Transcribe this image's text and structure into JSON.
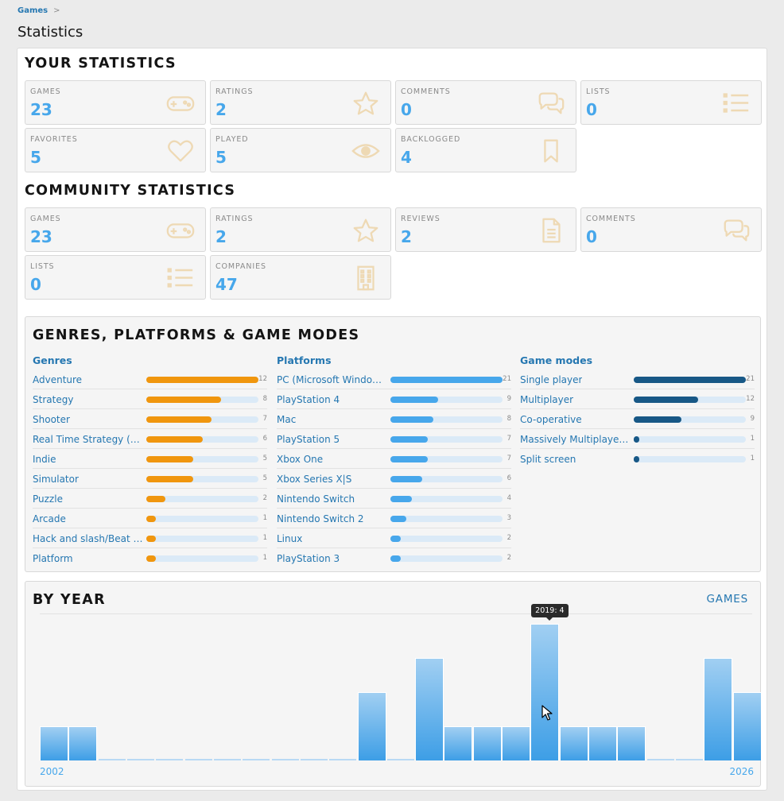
{
  "breadcrumb": {
    "item": "Games",
    "separator": ">"
  },
  "page_title": "Statistics",
  "your_stats": {
    "title": "YOUR STATISTICS",
    "tiles": [
      {
        "label": "GAMES",
        "value": "23",
        "icon": "gamepad-icon"
      },
      {
        "label": "RATINGS",
        "value": "2",
        "icon": "star-icon"
      },
      {
        "label": "COMMENTS",
        "value": "0",
        "icon": "comments-icon"
      },
      {
        "label": "LISTS",
        "value": "0",
        "icon": "list-icon"
      },
      {
        "label": "FAVORITES",
        "value": "5",
        "icon": "heart-icon"
      },
      {
        "label": "PLAYED",
        "value": "5",
        "icon": "eye-icon"
      },
      {
        "label": "BACKLOGGED",
        "value": "4",
        "icon": "bookmark-icon"
      }
    ]
  },
  "community_stats": {
    "title": "COMMUNITY STATISTICS",
    "tiles": [
      {
        "label": "GAMES",
        "value": "23",
        "icon": "gamepad-icon"
      },
      {
        "label": "RATINGS",
        "value": "2",
        "icon": "star-icon"
      },
      {
        "label": "REVIEWS",
        "value": "2",
        "icon": "document-icon"
      },
      {
        "label": "COMMENTS",
        "value": "0",
        "icon": "comments-icon"
      },
      {
        "label": "LISTS",
        "value": "0",
        "icon": "list-icon"
      },
      {
        "label": "COMPANIES",
        "value": "47",
        "icon": "building-icon"
      }
    ]
  },
  "breakdown": {
    "title": "GENRES, PLATFORMS & GAME MODES",
    "colors": {
      "genres": "#f0960e",
      "platforms": "#47a7eb",
      "modes": "#185886"
    },
    "genres": {
      "heading": "Genres",
      "max": 12,
      "items": [
        {
          "name": "Adventure",
          "count": 12
        },
        {
          "name": "Strategy",
          "count": 8
        },
        {
          "name": "Shooter",
          "count": 7
        },
        {
          "name": "Real Time Strategy (RTS)",
          "count": 6
        },
        {
          "name": "Indie",
          "count": 5
        },
        {
          "name": "Simulator",
          "count": 5
        },
        {
          "name": "Puzzle",
          "count": 2
        },
        {
          "name": "Arcade",
          "count": 1
        },
        {
          "name": "Hack and slash/Beat 'em ...",
          "count": 1
        },
        {
          "name": "Platform",
          "count": 1
        }
      ]
    },
    "platforms": {
      "heading": "Platforms",
      "max": 21,
      "items": [
        {
          "name": "PC (Microsoft Windows)",
          "count": 21
        },
        {
          "name": "PlayStation 4",
          "count": 9
        },
        {
          "name": "Mac",
          "count": 8
        },
        {
          "name": "PlayStation 5",
          "count": 7
        },
        {
          "name": "Xbox One",
          "count": 7
        },
        {
          "name": "Xbox Series X|S",
          "count": 6
        },
        {
          "name": "Nintendo Switch",
          "count": 4
        },
        {
          "name": "Nintendo Switch 2",
          "count": 3
        },
        {
          "name": "Linux",
          "count": 2
        },
        {
          "name": "PlayStation 3",
          "count": 2
        }
      ]
    },
    "modes": {
      "heading": "Game modes",
      "max": 21,
      "items": [
        {
          "name": "Single player",
          "count": 21
        },
        {
          "name": "Multiplayer",
          "count": 12
        },
        {
          "name": "Co-operative",
          "count": 9
        },
        {
          "name": "Massively Multiplayer On...",
          "count": 1
        },
        {
          "name": "Split screen",
          "count": 1
        }
      ]
    }
  },
  "by_year": {
    "title": "BY YEAR",
    "sub_link": "GAMES",
    "start_label": "2002",
    "end_label": "2026",
    "tooltip": "2019: 4",
    "highlight_year": 2019
  },
  "chart_data": {
    "type": "bar",
    "categories": [
      "2002",
      "2003",
      "2004",
      "2005",
      "2006",
      "2007",
      "2008",
      "2009",
      "2010",
      "2011",
      "2012",
      "2013",
      "2014",
      "2015",
      "2016",
      "2017",
      "2018",
      "2019",
      "2020",
      "2021",
      "2022",
      "2023",
      "2024",
      "2025",
      "2026"
    ],
    "values": [
      1,
      1,
      0,
      0,
      0,
      0,
      0,
      0,
      0,
      0,
      0,
      2,
      0,
      3,
      1,
      1,
      1,
      4,
      1,
      1,
      1,
      0,
      0,
      3,
      2
    ],
    "xlabel": "",
    "ylabel": "",
    "ylim": [
      0,
      4
    ],
    "color": "#47a7eb"
  }
}
